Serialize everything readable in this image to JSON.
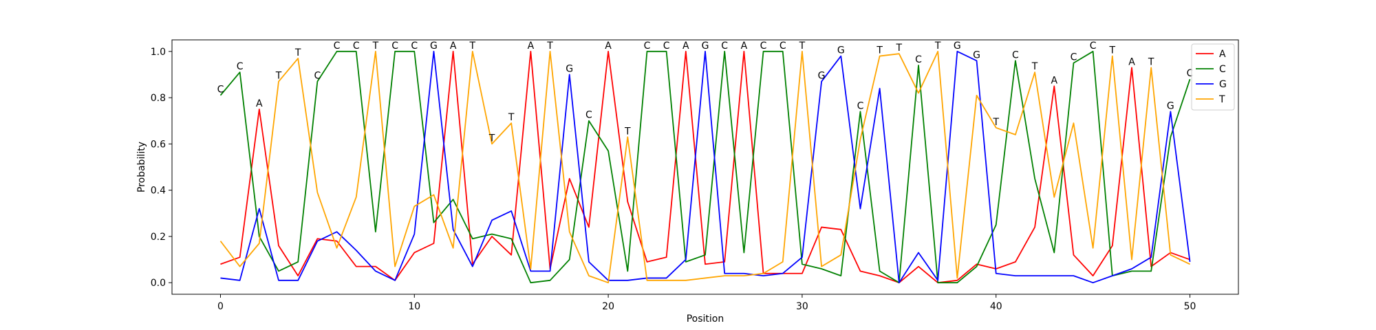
{
  "chart_data": {
    "type": "line",
    "title": "",
    "xlabel": "Position",
    "ylabel": "Probability",
    "xlim": [
      -2.5,
      52.5
    ],
    "ylim": [
      -0.05,
      1.05
    ],
    "xticks": [
      0,
      10,
      20,
      30,
      40,
      50
    ],
    "yticks": [
      0.0,
      0.2,
      0.4,
      0.6,
      0.8,
      1.0
    ],
    "xtick_labels": [
      "0",
      "10",
      "20",
      "30",
      "40",
      "50"
    ],
    "ytick_labels": [
      "0.0",
      "0.2",
      "0.4",
      "0.6",
      "0.8",
      "1.0"
    ],
    "legend_position": "top-right",
    "grid": false,
    "x": [
      0,
      1,
      2,
      3,
      4,
      5,
      6,
      7,
      8,
      9,
      10,
      11,
      12,
      13,
      14,
      15,
      16,
      17,
      18,
      19,
      20,
      21,
      22,
      23,
      24,
      25,
      26,
      27,
      28,
      29,
      30,
      31,
      32,
      33,
      34,
      35,
      36,
      37,
      38,
      39,
      40,
      41,
      42,
      43,
      44,
      45,
      46,
      47,
      48,
      49,
      50
    ],
    "series": [
      {
        "name": "A",
        "color": "#ff0000",
        "values": [
          0.08,
          0.11,
          0.75,
          0.16,
          0.03,
          0.19,
          0.18,
          0.07,
          0.07,
          0.01,
          0.13,
          0.17,
          1.0,
          0.08,
          0.2,
          0.12,
          1.0,
          0.06,
          0.45,
          0.24,
          1.0,
          0.35,
          0.09,
          0.11,
          1.0,
          0.08,
          0.09,
          1.0,
          0.04,
          0.04,
          0.04,
          0.24,
          0.23,
          0.05,
          0.03,
          0.0,
          0.07,
          0.0,
          0.01,
          0.08,
          0.06,
          0.09,
          0.24,
          0.85,
          0.12,
          0.03,
          0.16,
          0.93,
          0.07,
          0.13,
          0.1
        ]
      },
      {
        "name": "C",
        "color": "#008000",
        "values": [
          0.81,
          0.91,
          0.2,
          0.05,
          0.09,
          0.87,
          1.0,
          1.0,
          0.22,
          1.0,
          1.0,
          0.26,
          0.36,
          0.19,
          0.21,
          0.19,
          0.0,
          0.01,
          0.1,
          0.7,
          0.57,
          0.05,
          1.0,
          1.0,
          0.09,
          0.12,
          1.0,
          0.13,
          1.0,
          1.0,
          0.08,
          0.06,
          0.03,
          0.74,
          0.05,
          0.0,
          0.94,
          0.0,
          0.0,
          0.07,
          0.25,
          0.96,
          0.45,
          0.13,
          0.95,
          1.0,
          0.03,
          0.05,
          0.05,
          0.63,
          0.88
        ]
      },
      {
        "name": "G",
        "color": "#0000ff",
        "values": [
          0.02,
          0.01,
          0.32,
          0.01,
          0.01,
          0.18,
          0.22,
          0.14,
          0.05,
          0.01,
          0.21,
          1.0,
          0.23,
          0.07,
          0.27,
          0.31,
          0.05,
          0.05,
          0.9,
          0.09,
          0.01,
          0.01,
          0.02,
          0.02,
          0.1,
          1.0,
          0.04,
          0.04,
          0.03,
          0.04,
          0.11,
          0.87,
          0.98,
          0.32,
          0.84,
          0.0,
          0.13,
          0.01,
          1.0,
          0.96,
          0.04,
          0.03,
          0.03,
          0.03,
          0.03,
          0.0,
          0.03,
          0.06,
          0.11,
          0.74,
          0.09
        ]
      },
      {
        "name": "T",
        "color": "#ffa500",
        "values": [
          0.18,
          0.07,
          0.17,
          0.87,
          0.97,
          0.39,
          0.15,
          0.37,
          1.0,
          0.07,
          0.33,
          0.38,
          0.15,
          1.0,
          0.6,
          0.69,
          0.06,
          1.0,
          0.22,
          0.03,
          0.0,
          0.63,
          0.01,
          0.01,
          0.01,
          0.02,
          0.03,
          0.03,
          0.04,
          0.09,
          1.0,
          0.07,
          0.12,
          0.62,
          0.98,
          0.99,
          0.82,
          1.0,
          0.02,
          0.81,
          0.67,
          0.64,
          0.91,
          0.37,
          0.69,
          0.15,
          0.98,
          0.1,
          0.93,
          0.12,
          0.08
        ]
      }
    ],
    "top_base_labels": [
      "C",
      "C",
      "A",
      "T",
      "T",
      "C",
      "C",
      "C",
      "T",
      "C",
      "C",
      "G",
      "A",
      "T",
      "T",
      "T",
      "A",
      "T",
      "G",
      "C",
      "A",
      "T",
      "C",
      "C",
      "A",
      "G",
      "C",
      "A",
      "C",
      "C",
      "T",
      "G",
      "G",
      "C",
      "T",
      "T",
      "C",
      "T",
      "G",
      "G",
      "T",
      "C",
      "T",
      "A",
      "C",
      "C",
      "T",
      "A",
      "T",
      "G",
      "C"
    ]
  }
}
